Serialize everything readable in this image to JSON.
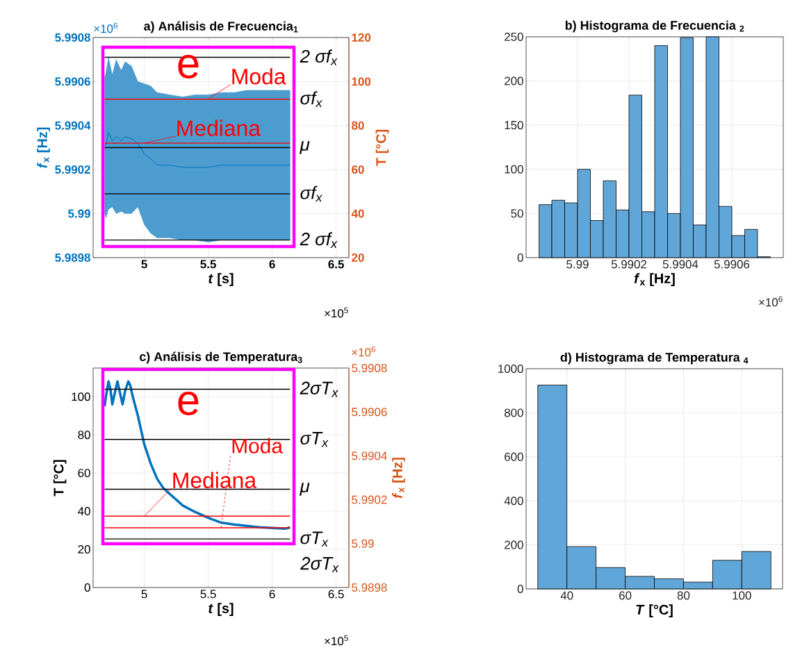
{
  "chart_data": [
    {
      "type": "line",
      "title": "a) Análisis de Frecuencia$_{1}$",
      "xlabel": "*t* [s]",
      "ylabel": "*f*$_{x}$ [Hz]",
      "y2label": "T [°C]",
      "x": [
        4.69,
        4.7,
        4.72,
        4.75,
        4.78,
        4.82,
        4.85,
        4.9,
        4.95,
        5.0,
        5.05,
        5.1,
        5.2,
        5.3,
        5.4,
        5.5,
        5.6,
        5.7,
        5.8,
        5.9,
        6.0,
        6.14
      ],
      "series": [
        {
          "color": "#0072bd",
          "values": [
            5.99031,
            5.99031,
            5.99037,
            5.99033,
            5.99035,
            5.99033,
            5.99035,
            5.99034,
            5.99032,
            5.99027,
            5.99025,
            5.99022,
            5.99022,
            5.99021,
            5.99021,
            5.99021,
            5.99022,
            5.99022,
            5.99022,
            5.99022,
            5.99022,
            5.99022
          ],
          "upper": [
            5.99062,
            5.99064,
            5.99071,
            5.99063,
            5.9907,
            5.99065,
            5.99069,
            5.99067,
            5.9906,
            5.99059,
            5.99058,
            5.99055,
            5.99054,
            5.99053,
            5.99054,
            5.99054,
            5.99055,
            5.99055,
            5.99056,
            5.99056,
            5.99056,
            5.99056
          ],
          "lower": [
            5.99,
            5.98998,
            5.99002,
            5.99003,
            5.99,
            5.99001,
            5.99,
            5.99,
            5.99003,
            5.98995,
            5.98991,
            5.98989,
            5.98989,
            5.98988,
            5.98988,
            5.98987,
            5.98988,
            5.98988,
            5.98988,
            5.98988,
            5.98988,
            5.98988
          ]
        }
      ],
      "xlim": [
        4.6,
        6.6
      ],
      "xticks": [
        5,
        5.5,
        6,
        6.5
      ],
      "ylim": [
        5.9898,
        5.9908
      ],
      "yticks": [
        5.9898,
        5.99,
        5.9902,
        5.9904,
        5.9906,
        5.9908
      ],
      "y2lim": [
        20,
        120
      ],
      "y2ticks": [
        20,
        40,
        60,
        80,
        100,
        120
      ],
      "grid": true,
      "ref_lines": [
        {
          "axis": "y",
          "value": 5.99071,
          "label": "2 σf$_{x}$",
          "color": "#000000"
        },
        {
          "axis": "y",
          "value": 5.9903,
          "label": "μ",
          "color": "#000000"
        },
        {
          "axis": "y",
          "value": 5.99009,
          "label": "σf$_{x}$",
          "color": "#000000"
        },
        {
          "axis": "y",
          "value": 5.98988,
          "label": "2 σf$_{x}$",
          "color": "#000000"
        },
        {
          "axis": "y",
          "value": 5.99052,
          "label": "σf$_{x}$",
          "color": "#ff0000"
        },
        {
          "axis": "y",
          "value": 5.99032,
          "color": "#ff0000"
        }
      ],
      "annotations": [
        "e",
        {
          "text": "Moda",
          "x": 5.5,
          "y": 5.99052
        },
        {
          "text": "Mediana",
          "x": 5.0,
          "y": 5.99032
        },
        "×10$^{6}$",
        "×10$^{5}$"
      ]
    },
    {
      "type": "histogram",
      "title": "b) Histograma de Frecuencia $_{2}$",
      "xlabel": "*f*$_{x}$ [Hz]",
      "bins": [
        5.98985,
        5.9899,
        5.98995,
        5.99,
        5.99005,
        5.9901,
        5.99015,
        5.9902,
        5.99025,
        5.9903,
        5.99035,
        5.9904,
        5.99045,
        5.9905,
        5.99055,
        5.9906,
        5.99065,
        5.9907,
        5.99075
      ],
      "values": [
        60,
        65,
        62,
        100,
        42,
        87,
        54,
        184,
        52,
        240,
        50,
        249,
        37,
        250,
        58,
        25,
        32,
        1
      ],
      "color": "#61a6d8",
      "xlim": [
        5.9898,
        5.9908
      ],
      "xticks": [
        5.99,
        5.9902,
        5.9904,
        5.9906
      ],
      "ylim": [
        0,
        250
      ],
      "yticks": [
        0,
        50,
        100,
        150,
        200,
        250
      ],
      "grid": true,
      "annotations": [
        "×10$^{6}$"
      ]
    },
    {
      "type": "line",
      "title": "c) Análisis de Temperatura$_{3}$",
      "xlabel": "*t* [s]",
      "ylabel": "T [°C]",
      "y2label": "*f*$_{x}$ [Hz]",
      "x": [
        4.69,
        4.7,
        4.72,
        4.735,
        4.75,
        4.77,
        4.79,
        4.81,
        4.83,
        4.85,
        4.875,
        4.89,
        4.91,
        4.95,
        5.0,
        5.05,
        5.1,
        5.15,
        5.2,
        5.3,
        5.4,
        5.5,
        5.6,
        5.7,
        5.8,
        5.9,
        6.0,
        6.1,
        6.14
      ],
      "series": [
        {
          "color": "#0072bd",
          "values": [
            95,
            100,
            108,
            104,
            96,
            102,
            108,
            102,
            96,
            103,
            108,
            106,
            100,
            90,
            75,
            65,
            57,
            52,
            49,
            43,
            39.5,
            36.5,
            34,
            33,
            32.3,
            31.6,
            31.2,
            30.8,
            31.5
          ]
        }
      ],
      "xlim": [
        4.6,
        6.6
      ],
      "xticks": [
        5,
        5.5,
        6,
        6.5
      ],
      "ylim": [
        0,
        115
      ],
      "yticks": [
        0,
        20,
        40,
        60,
        80,
        100
      ],
      "y2lim": [
        5.9898,
        5.9908
      ],
      "y2ticks": [
        5.9898,
        5.99,
        5.9902,
        5.9904,
        5.9906,
        5.9908
      ],
      "grid": true,
      "ref_lines": [
        {
          "axis": "y",
          "value": 103.9,
          "label": "2σT$_{x}$",
          "color": "#000000"
        },
        {
          "axis": "y",
          "value": 77.6,
          "label": "σT$_{x}$",
          "color": "#000000"
        },
        {
          "axis": "y",
          "value": 51.5,
          "label": "μ",
          "color": "#000000"
        },
        {
          "axis": "y",
          "value": 25.4,
          "label": "σT$_{x}$",
          "color": "#000000"
        },
        {
          "axis": "y",
          "value": 37.4,
          "color": "#ff0000"
        },
        {
          "axis": "y",
          "value": 31.3,
          "color": "#ff0000"
        }
      ],
      "annotations": [
        "e",
        {
          "text": "Mediana",
          "x": 5.0,
          "y": 37.4
        },
        {
          "text": "Moda",
          "x": 5.6,
          "y": 31.3
        },
        "2σT$_{x}$",
        "×10$^{6}$",
        "×10$^{5}$"
      ]
    },
    {
      "type": "histogram",
      "title": "d) Histograma de Temperatura $_{4}$",
      "xlabel": "*T* [°C]",
      "bins": [
        30,
        40,
        50,
        60,
        70,
        80,
        90,
        100,
        110
      ],
      "values": [
        926,
        192,
        97,
        57,
        46,
        31,
        130,
        170
      ],
      "color": "#61a6d8",
      "xlim": [
        26,
        114
      ],
      "xticks": [
        40,
        60,
        80,
        100
      ],
      "ylim": [
        0,
        1000
      ],
      "yticks": [
        0,
        200,
        400,
        600,
        800,
        1000
      ],
      "grid": true
    }
  ]
}
